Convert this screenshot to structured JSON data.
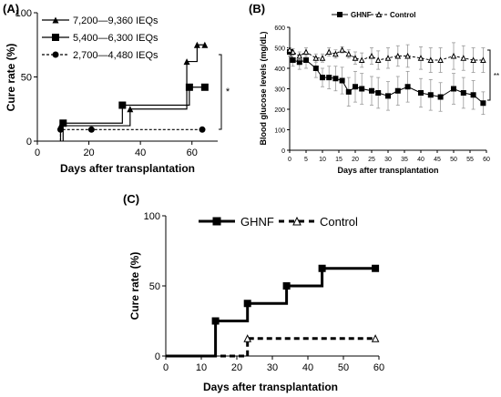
{
  "chart_data": [
    {
      "panel": "(A)",
      "type": "line",
      "step": true,
      "xlabel": "Days  after transplantation",
      "ylabel": "Cure rate (%)",
      "xlim": [
        0,
        70
      ],
      "ylim": [
        0,
        100
      ],
      "xticks": [
        "0",
        "20",
        "40",
        "60"
      ],
      "yticks": [
        "0",
        "50",
        "100"
      ],
      "legend_position": "top-left",
      "significance": "*",
      "series": [
        {
          "name": "7,200—9,360 IEQs",
          "marker": "triangle",
          "line": "solid",
          "x": [
            9,
            36,
            58,
            62,
            65
          ],
          "y": [
            12,
            25,
            62,
            75,
            75
          ]
        },
        {
          "name": "5,400—6,300 IEQs",
          "marker": "square",
          "line": "solid",
          "x": [
            10,
            33,
            59,
            65
          ],
          "y": [
            14,
            28,
            42,
            42
          ]
        },
        {
          "name": "2,700—4,480 IEQs",
          "marker": "circle",
          "line": "dashed",
          "x": [
            9,
            21,
            64
          ],
          "y": [
            9,
            9,
            9
          ]
        }
      ]
    },
    {
      "panel": "(B)",
      "type": "line",
      "xlabel": "Days after transplantation",
      "ylabel": "Blood glucose levels (mg/dL)",
      "xlim": [
        0,
        60
      ],
      "ylim": [
        0,
        600
      ],
      "xticks": [
        "0",
        "5",
        "10",
        "15",
        "20",
        "25",
        "30",
        "35",
        "40",
        "45",
        "50",
        "55",
        "60"
      ],
      "yticks": [
        "0",
        "100",
        "200",
        "300",
        "400",
        "500",
        "600"
      ],
      "legend_position": "top",
      "significance": "**",
      "series": [
        {
          "name": "GHNF",
          "marker": "square",
          "line": "solid",
          "x": [
            0,
            1,
            3,
            5,
            8,
            10,
            12,
            14,
            16,
            18,
            20,
            22,
            25,
            27,
            30,
            33,
            36,
            40,
            43,
            46,
            50,
            53,
            56,
            59
          ],
          "y": [
            480,
            440,
            430,
            440,
            400,
            355,
            355,
            350,
            340,
            285,
            310,
            300,
            290,
            280,
            265,
            290,
            310,
            280,
            270,
            260,
            300,
            280,
            270,
            230
          ],
          "err": [
            20,
            30,
            35,
            40,
            45,
            45,
            55,
            60,
            65,
            70,
            75,
            75,
            70,
            75,
            70,
            70,
            75,
            70,
            75,
            70,
            75,
            75,
            70,
            55
          ]
        },
        {
          "name": "Control",
          "marker": "triangle-open",
          "line": "dashed",
          "x": [
            0,
            1,
            3,
            5,
            8,
            10,
            12,
            14,
            16,
            18,
            20,
            22,
            25,
            27,
            30,
            33,
            36,
            40,
            43,
            46,
            50,
            53,
            56,
            59
          ],
          "y": [
            490,
            480,
            460,
            480,
            450,
            450,
            480,
            470,
            490,
            470,
            450,
            440,
            460,
            440,
            450,
            460,
            460,
            450,
            440,
            440,
            460,
            450,
            440,
            440
          ],
          "err": [
            10,
            15,
            20,
            20,
            20,
            20,
            20,
            20,
            15,
            20,
            30,
            35,
            40,
            45,
            50,
            50,
            55,
            55,
            60,
            60,
            65,
            60,
            60,
            60
          ]
        }
      ]
    },
    {
      "panel": "(C)",
      "type": "line",
      "step": true,
      "xlabel": "Days  after transplantation",
      "ylabel": "Cure rate (%)",
      "xlim": [
        0,
        60
      ],
      "ylim": [
        0,
        100
      ],
      "xticks": [
        "0",
        "10",
        "20",
        "30",
        "40",
        "50",
        "60"
      ],
      "yticks": [
        "0",
        "50",
        "100"
      ],
      "legend_position": "top",
      "series": [
        {
          "name": "GHNF",
          "marker": "square",
          "line": "solid",
          "x": [
            0,
            14,
            23,
            34,
            44,
            59
          ],
          "y": [
            0,
            25,
            37.5,
            50,
            62.5,
            62.5
          ]
        },
        {
          "name": "Control",
          "marker": "triangle-open",
          "line": "dashed",
          "x": [
            0,
            23,
            59
          ],
          "y": [
            0,
            12.5,
            12.5
          ]
        }
      ]
    }
  ]
}
